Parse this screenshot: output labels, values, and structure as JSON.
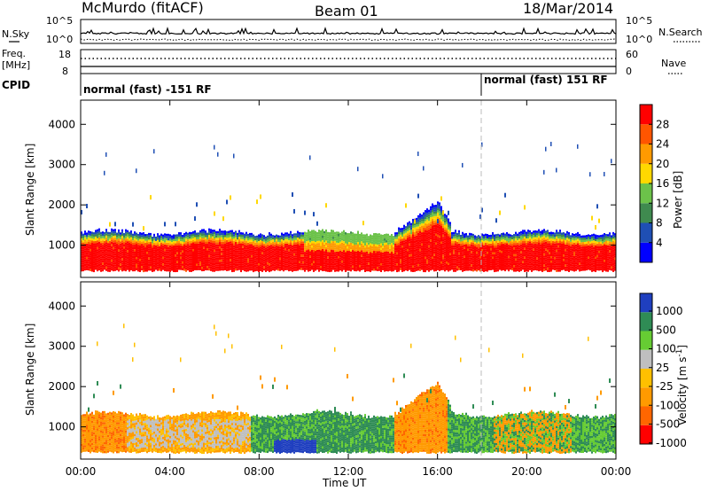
{
  "header": {
    "station": "McMurdo (fitACF)",
    "beam": "Beam 01",
    "date": "18/Mar/2014"
  },
  "top_panel": {
    "nsky_label": "N.Sky",
    "nsearch_label": "N.Search",
    "noise_top_tick": "10^5",
    "noise_bottom_tick": "10^0",
    "freq_label": "Freq.",
    "freq_unit": "[MHz]",
    "freq_ticks": [
      "18",
      "8"
    ],
    "nave_label": "Nave",
    "nave_ticks": [
      "60",
      "0"
    ],
    "cpid_label": "CPID",
    "cpid_segments": [
      {
        "text": "normal (fast) -151 RF"
      },
      {
        "text": "normal (fast) 151 RF"
      }
    ]
  },
  "colors": {
    "power_scale": [
      "#0000ff",
      "#1f4fb4",
      "#3f8a4f",
      "#6cc24a",
      "#ffd800",
      "#ff9a00",
      "#ff5500",
      "#ff0000"
    ],
    "velocity_scale": [
      "#ff0000",
      "#ff6600",
      "#ff9a00",
      "#ffc000",
      "#bfbfbf",
      "#66cc33",
      "#2f8c55",
      "#1f3fbf"
    ],
    "ground_scatter": "#bfbfbf"
  },
  "chart_data": [
    {
      "type": "heatmap",
      "name": "power",
      "title": "",
      "xlabel": "",
      "ylabel": "Slant Range [km]",
      "xlim": [
        0,
        24
      ],
      "ylim": [
        200,
        4600
      ],
      "y_ticks": [
        1000,
        2000,
        3000,
        4000
      ],
      "x_ticks": [
        "00:00",
        "04:00",
        "08:00",
        "12:00",
        "16:00",
        "20:00",
        "00:00"
      ],
      "colorbar": {
        "label": "Power [dB]",
        "min": 0,
        "max": 32,
        "ticks": [
          4,
          8,
          12,
          16,
          20,
          24,
          28
        ]
      }
    },
    {
      "type": "heatmap",
      "name": "velocity",
      "title": "",
      "xlabel": "Time UT",
      "ylabel": "Slant Range [km]",
      "xlim": [
        0,
        24
      ],
      "ylim": [
        200,
        4600
      ],
      "y_ticks": [
        1000,
        2000,
        3000,
        4000
      ],
      "x_ticks": [
        "00:00",
        "04:00",
        "08:00",
        "12:00",
        "16:00",
        "20:00",
        "00:00"
      ],
      "colorbar": {
        "label": "Velocity [m s^-1]",
        "ticks": [
          "1000",
          "500",
          "100",
          "25",
          "-25",
          "-100",
          "-500",
          "-1000"
        ]
      }
    }
  ]
}
